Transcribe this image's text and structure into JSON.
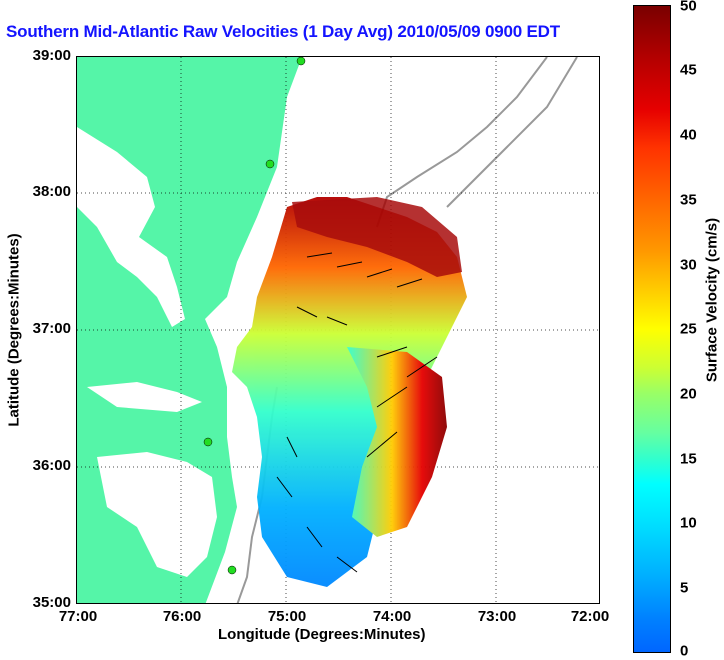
{
  "title": "Southern Mid-Atlantic Raw Velocities (1 Day Avg) 2010/05/09 0900 EDT",
  "axes": {
    "xlabel": "Longitude (Degrees:Minutes)",
    "ylabel": "Latitude (Degrees:Minutes)",
    "xticks": [
      "77:00",
      "76:00",
      "75:00",
      "74:00",
      "73:00",
      "72:00"
    ],
    "yticks": [
      "39:00",
      "38:00",
      "37:00",
      "36:00",
      "35:00"
    ]
  },
  "colorbar": {
    "label": "Surface Velocity (cm/s)",
    "ticks": [
      "50",
      "45",
      "40",
      "35",
      "30",
      "25",
      "20",
      "15",
      "10",
      "5",
      "0"
    ],
    "range": [
      0,
      50
    ]
  },
  "colors": {
    "land": "#55f5a8",
    "title": "#1414ff",
    "bathymetry": "#999999",
    "station": "#22dd22"
  }
}
